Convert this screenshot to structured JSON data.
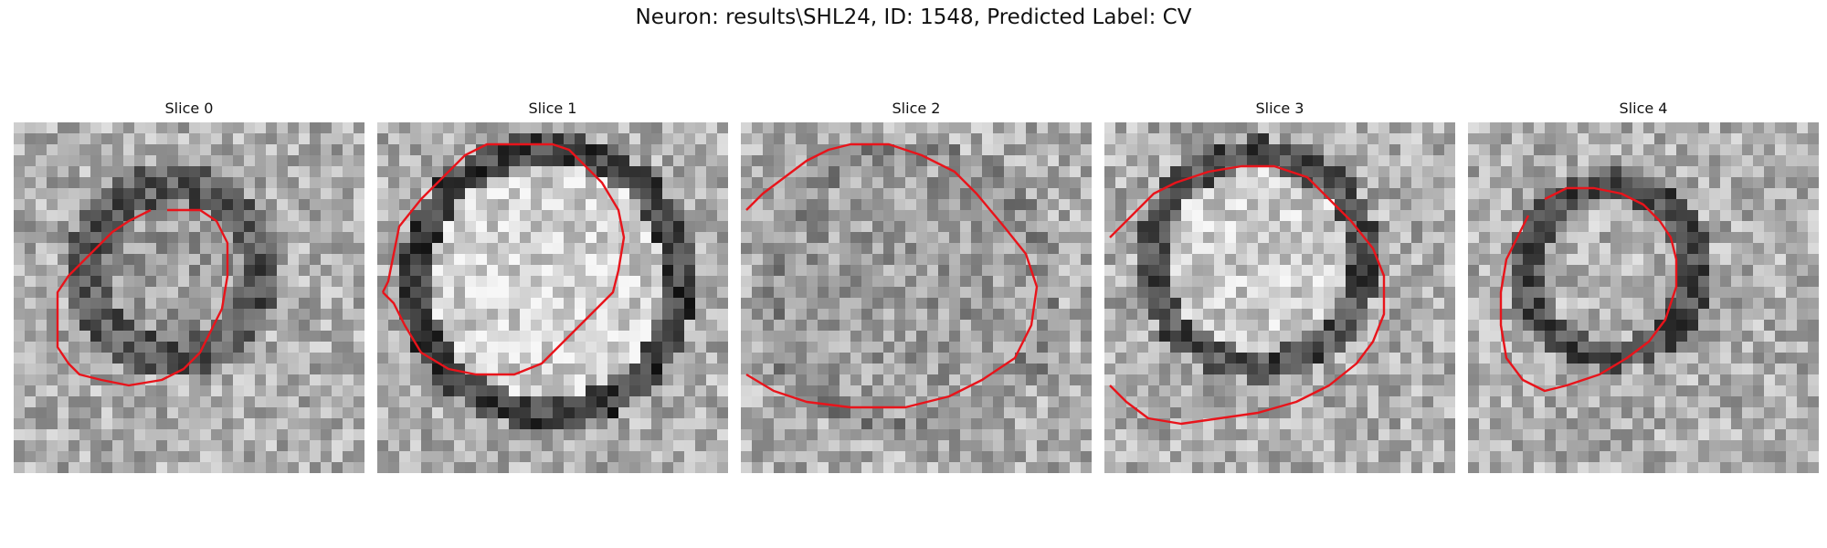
{
  "figure": {
    "suptitle": "Neuron: results\\SHL24, ID: 1548, Predicted Label: CV",
    "contour_color": "#e8141b",
    "colormap": "grayscale",
    "panels": [
      {
        "title": "Slice 0",
        "image_icon": "grayscale-microscopy-patch"
      },
      {
        "title": "Slice 1",
        "image_icon": "grayscale-microscopy-patch"
      },
      {
        "title": "Slice 2",
        "image_icon": "grayscale-microscopy-patch"
      },
      {
        "title": "Slice 3",
        "image_icon": "grayscale-microscopy-patch"
      },
      {
        "title": "Slice 4",
        "image_icon": "grayscale-microscopy-patch"
      }
    ]
  }
}
